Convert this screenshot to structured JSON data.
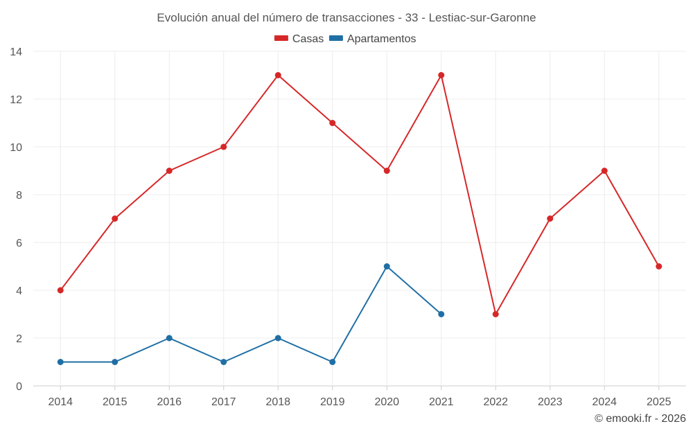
{
  "chart_data": {
    "type": "line",
    "title": "Evolución anual del número de transacciones - 33 - Lestiac-sur-Garonne",
    "xlabel": "",
    "ylabel": "",
    "categories": [
      "2014",
      "2015",
      "2016",
      "2017",
      "2018",
      "2019",
      "2020",
      "2021",
      "2022",
      "2023",
      "2024",
      "2025"
    ],
    "ylim": [
      0,
      14
    ],
    "yticks": [
      0,
      2,
      4,
      6,
      8,
      10,
      12,
      14
    ],
    "grid": true,
    "legend_position": "top-center",
    "series": [
      {
        "name": "Casas",
        "color": "#d62728",
        "values": [
          4,
          7,
          9,
          10,
          13,
          11,
          9,
          13,
          3,
          7,
          9,
          5
        ]
      },
      {
        "name": "Apartamentos",
        "color": "#1f6fa5",
        "values": [
          1,
          1,
          2,
          1,
          2,
          1,
          5,
          3,
          null,
          null,
          null,
          null
        ]
      }
    ]
  },
  "credit": "© emooki.fr - 2026"
}
